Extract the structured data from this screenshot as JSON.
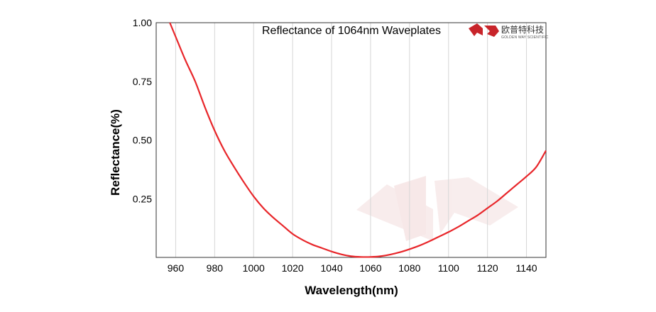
{
  "chart_data": {
    "type": "line",
    "title": "Reflectance of 1064nm Waveplates",
    "xlabel": "Wavelength(nm)",
    "ylabel": "Reflectance(%)",
    "xlim": [
      950,
      1150
    ],
    "ylim": [
      0,
      1.0
    ],
    "xticks": [
      "960",
      "980",
      "1000",
      "1020",
      "1040",
      "1060",
      "1080",
      "1100",
      "1120",
      "1140"
    ],
    "xtick_values": [
      960,
      980,
      1000,
      1020,
      1040,
      1060,
      1080,
      1100,
      1120,
      1140
    ],
    "yticks": [
      "1.00",
      "0.75",
      "0.50",
      "0.25"
    ],
    "ytick_values": [
      1.0,
      0.75,
      0.5,
      0.25
    ],
    "grid": "vertical",
    "series": [
      {
        "color": "#e8262a",
        "x": [
          957,
          960,
          965,
          970,
          975,
          980,
          985,
          990,
          995,
          1000,
          1005,
          1010,
          1015,
          1020,
          1025,
          1030,
          1035,
          1040,
          1045,
          1050,
          1055,
          1060,
          1065,
          1070,
          1075,
          1080,
          1085,
          1090,
          1095,
          1100,
          1105,
          1110,
          1115,
          1120,
          1125,
          1130,
          1135,
          1140,
          1145,
          1150
        ],
        "y": [
          1.0,
          0.94,
          0.84,
          0.75,
          0.64,
          0.54,
          0.455,
          0.385,
          0.32,
          0.26,
          0.21,
          0.17,
          0.135,
          0.1,
          0.075,
          0.055,
          0.04,
          0.025,
          0.013,
          0.005,
          0.002,
          0.002,
          0.005,
          0.012,
          0.022,
          0.035,
          0.05,
          0.068,
          0.088,
          0.108,
          0.13,
          0.155,
          0.18,
          0.21,
          0.24,
          0.275,
          0.31,
          0.345,
          0.385,
          0.455
        ]
      }
    ]
  },
  "logo": {
    "name_cn": "欧普特科技",
    "name_en": "GOLDEN WAY SCIENTIFIC",
    "brand_color": "#c8242a",
    "watermark_color": "#f3d9d9"
  }
}
